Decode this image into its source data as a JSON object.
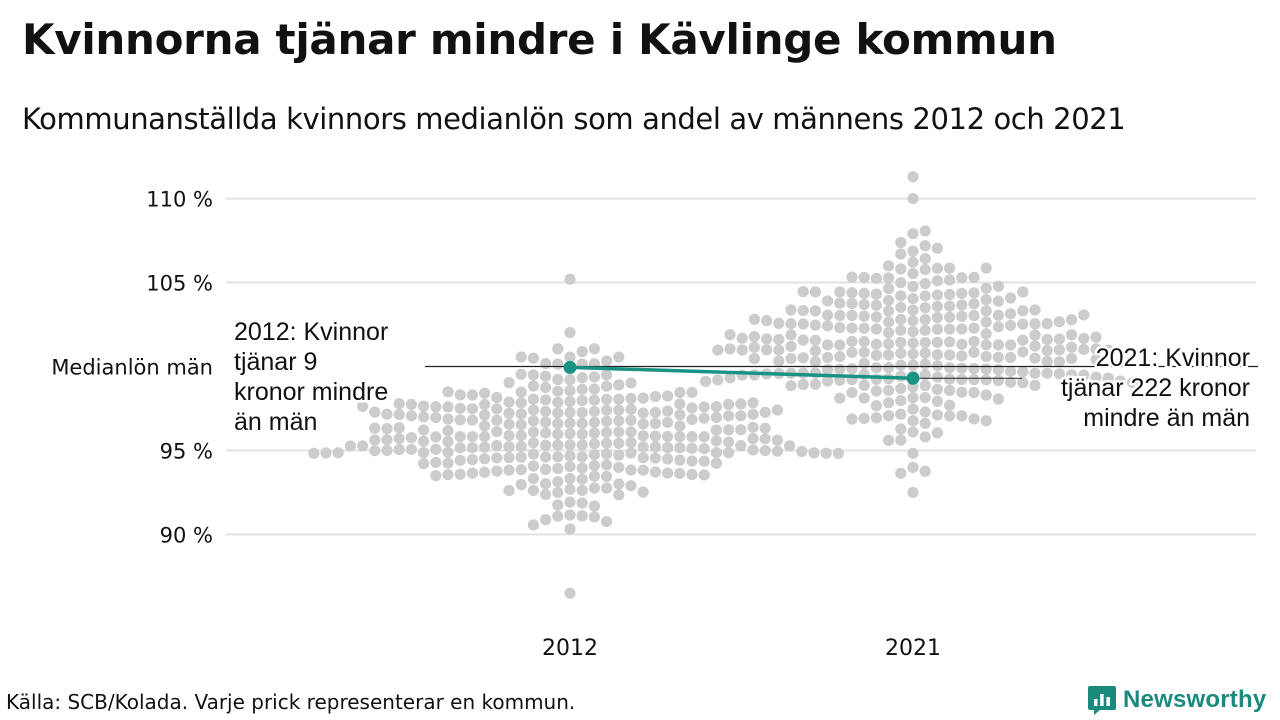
{
  "title": "Kvinnorna tjänar mindre i Kävlinge kommun",
  "subtitle": "Kommunanställda kvinnors medianlön som andel av männens 2012 och 2021",
  "source": "Källa: SCB/Kolada. Varje prick representerar en kommun.",
  "brand": {
    "name": "Newsworthy",
    "color": "#1b8a7e"
  },
  "colors": {
    "dots": "#cccccc",
    "highlight": "#1a9385",
    "grid": "#e3e3e3",
    "reference_line": "#222222",
    "text": "#111111"
  },
  "chart_data": {
    "type": "scatter",
    "subtype": "beeswarm",
    "categories": [
      "2012",
      "2021"
    ],
    "ylim": [
      85.5,
      112
    ],
    "yticks": [
      {
        "value": 110,
        "label": "110 %"
      },
      {
        "value": 105,
        "label": "105 %"
      },
      {
        "value": 100,
        "label": "Medianlön män"
      },
      {
        "value": 95,
        "label": "95 %"
      },
      {
        "value": 90,
        "label": "90 %"
      }
    ],
    "gridlines": true,
    "reference_line": {
      "value": 100,
      "label": "Medianlön män"
    },
    "distributions": [
      {
        "category": "2012",
        "n": 290,
        "median": 96.0,
        "spread": 2.2,
        "min": 86.5,
        "max": 105.2
      },
      {
        "category": "2021",
        "n": 290,
        "median": 101.4,
        "spread": 2.6,
        "min": 92.5,
        "max": 111.3
      }
    ],
    "highlight": {
      "name": "Kävlinge",
      "points": [
        {
          "x": "2012",
          "y": 99.95
        },
        {
          "x": "2021",
          "y": 99.3
        }
      ]
    },
    "annotations": [
      {
        "category": "2012",
        "text": "2012: Kvinnor\ntjänar 9\nkronor mindre\nän män",
        "align": "left"
      },
      {
        "category": "2021",
        "text": "2021: Kvinnor\ntjänar 222 kronor\nmindre än män",
        "align": "right"
      }
    ]
  }
}
